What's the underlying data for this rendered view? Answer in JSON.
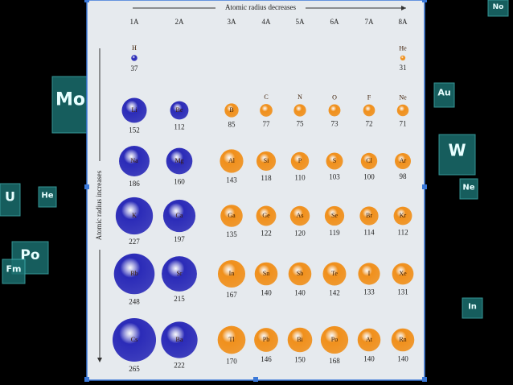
{
  "title": "Atomic radius decreases",
  "side_label": "Atomic radius increases",
  "groups": [
    {
      "label": "1A",
      "color": "#2b2bb8",
      "elements": [
        {
          "symbol": "H",
          "radius": 37
        },
        {
          "symbol": "Li",
          "radius": 152
        },
        {
          "symbol": "Na",
          "radius": 186
        },
        {
          "symbol": "K",
          "radius": 227
        },
        {
          "symbol": "Rb",
          "radius": 248
        },
        {
          "symbol": "Cs",
          "radius": 265
        }
      ]
    },
    {
      "label": "2A",
      "color": "#2b2bb8",
      "elements": [
        {
          "symbol": "Be",
          "radius": 112
        },
        {
          "symbol": "Mg",
          "radius": 160
        },
        {
          "symbol": "Ca",
          "radius": 197
        },
        {
          "symbol": "Sr",
          "radius": 215
        },
        {
          "symbol": "Ba",
          "radius": 222
        }
      ]
    },
    {
      "label": "3A",
      "color": "#f0901c",
      "elements": [
        {
          "symbol": "B",
          "radius": 85
        },
        {
          "symbol": "Al",
          "radius": 143
        },
        {
          "symbol": "Ga",
          "radius": 135
        },
        {
          "symbol": "In",
          "radius": 167
        },
        {
          "symbol": "Tl",
          "radius": 170
        }
      ]
    },
    {
      "label": "4A",
      "color": "#f0901c",
      "elements": [
        {
          "symbol": "C",
          "radius": 77
        },
        {
          "symbol": "Si",
          "radius": 118
        },
        {
          "symbol": "Ge",
          "radius": 122
        },
        {
          "symbol": "Sn",
          "radius": 140
        },
        {
          "symbol": "Pb",
          "radius": 146
        }
      ]
    },
    {
      "label": "5A",
      "color": "#f0901c",
      "elements": [
        {
          "symbol": "N",
          "radius": 75
        },
        {
          "symbol": "P",
          "radius": 110
        },
        {
          "symbol": "As",
          "radius": 120
        },
        {
          "symbol": "Sb",
          "radius": 140
        },
        {
          "symbol": "Bi",
          "radius": 150
        }
      ]
    },
    {
      "label": "6A",
      "color": "#f0901c",
      "elements": [
        {
          "symbol": "O",
          "radius": 73
        },
        {
          "symbol": "S",
          "radius": 103
        },
        {
          "symbol": "Se",
          "radius": 119
        },
        {
          "symbol": "Te",
          "radius": 142
        },
        {
          "symbol": "Po",
          "radius": 168
        }
      ]
    },
    {
      "label": "7A",
      "color": "#f0901c",
      "elements": [
        {
          "symbol": "F",
          "radius": 72
        },
        {
          "symbol": "Cl",
          "radius": 100
        },
        {
          "symbol": "Br",
          "radius": 114
        },
        {
          "symbol": "I",
          "radius": 133
        },
        {
          "symbol": "At",
          "radius": 140
        }
      ]
    },
    {
      "label": "8A",
      "color": "#f0901c",
      "elements": [
        {
          "symbol": "He",
          "radius": 31
        },
        {
          "symbol": "Ne",
          "radius": 71
        },
        {
          "symbol": "Ar",
          "radius": 98
        },
        {
          "symbol": "Kr",
          "radius": 112
        },
        {
          "symbol": "Xe",
          "radius": 131
        },
        {
          "symbol": "Rn",
          "radius": 140
        }
      ]
    }
  ],
  "background_tiles": [
    "Mo",
    "W",
    "Au",
    "He",
    "U",
    "Po",
    "Fm",
    "Ne",
    "In",
    "No"
  ]
}
